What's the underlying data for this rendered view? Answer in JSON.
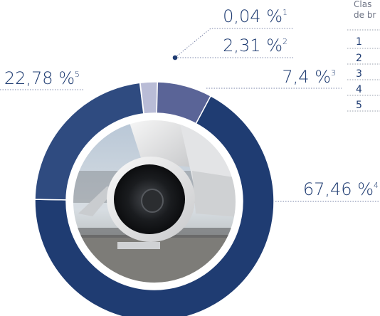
{
  "chart_data": {
    "type": "pie",
    "donut": true,
    "slices": [
      {
        "id": "1",
        "value": 0.04,
        "label": "0,04 %",
        "footnote": "1",
        "color": "#b9bcd6"
      },
      {
        "id": "2",
        "value": 2.31,
        "label": "2,31 %",
        "footnote": "2",
        "color": "#b9bcd6"
      },
      {
        "id": "3",
        "value": 7.4,
        "label": "7,4 %",
        "footnote": "3",
        "color": "#5a6497"
      },
      {
        "id": "4",
        "value": 67.46,
        "label": "67,46 %",
        "footnote": "4",
        "color": "#1f3c72"
      },
      {
        "id": "5",
        "value": 22.78,
        "label": "22,78 %",
        "footnote": "5",
        "color": "#2f4b80"
      }
    ],
    "legend": {
      "title_line1": "Clas",
      "title_line2": "de br",
      "items": [
        "1",
        "2",
        "3",
        "4",
        "5"
      ]
    }
  },
  "colors": {
    "label_text": "#1f3c72",
    "leader_line": "#7a84a8",
    "background": "#ffffff"
  }
}
